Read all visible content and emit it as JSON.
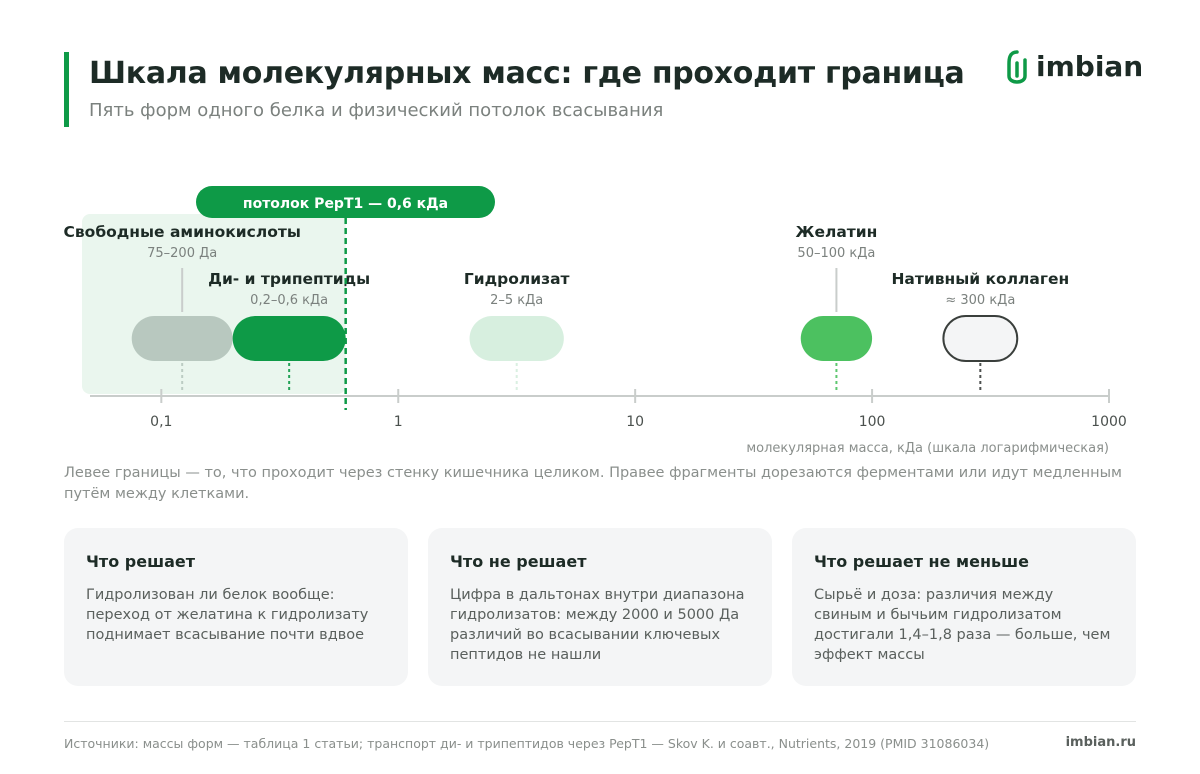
{
  "header": {
    "title": "Шкала молекулярных масс: где проходит граница",
    "subtitle": "Пять форм одного белка и физический потолок всасывания",
    "logo": "imbian"
  },
  "chart_data": {
    "type": "range-scale",
    "x_label": "молекулярная масса, кДа (шкала логарифмическая)",
    "xscale": "log",
    "xlim": [
      0.05,
      1000
    ],
    "xticks": [
      {
        "value": 0.1,
        "label": "0,1"
      },
      1,
      10,
      100,
      1000
    ],
    "threshold": {
      "label": "потолок PepT1 — 0,6 кДа",
      "value": 0.6,
      "color": "#0e9a47"
    },
    "series": [
      {
        "name": "Свободные аминокислоты",
        "range_label": "75–200 Да",
        "values": [
          0.075,
          0.2
        ],
        "color": "#b8c8bf"
      },
      {
        "name": "Ди- и трипептиды",
        "range_label": "0,2–0,6 кДа",
        "values": [
          0.2,
          0.6
        ],
        "color": "#0e9a47"
      },
      {
        "name": "Гидролизат",
        "range_label": "2–5 кДа",
        "values": [
          2,
          5
        ],
        "color": "#d7efdf"
      },
      {
        "name": "Желатин",
        "range_label": "50–100 кДа",
        "values": [
          50,
          100
        ],
        "color": "#4cc160"
      },
      {
        "name": "Нативный коллаген",
        "range_label": "≈ 300 кДа",
        "values": [
          200,
          410
        ],
        "color": "#f4f5f6",
        "border": "#3a3f3c"
      }
    ]
  },
  "note": "Левее границы — то, что проходит через стенку кишечника целиком. Правее фрагменты дорезаются ферментами или идут медленным путём между клетками.",
  "cards": [
    {
      "title": "Что решает",
      "text": "Гидролизован ли белок вообще: переход от желатина к гидролизату поднимает всасывание почти вдвое"
    },
    {
      "title": "Что не решает",
      "text": "Цифра в дальтонах внутри диапазона гидролизатов: между 2000 и 5000 Да различий во всасывании ключевых пептидов не нашли"
    },
    {
      "title": "Что решает не меньше",
      "text": "Сырьё и доза: различия между свиным и бычьим гидролизатом достигали 1,4–1,8 раза — больше, чем эффект массы"
    }
  ],
  "footer": {
    "sources": "Источники: массы форм — таблица 1 статьи; транспорт ди- и трипептидов через PepT1 — Skov K. и соавт., Nutrients, 2019 (PMID 31086034)",
    "site": "imbian.ru"
  }
}
